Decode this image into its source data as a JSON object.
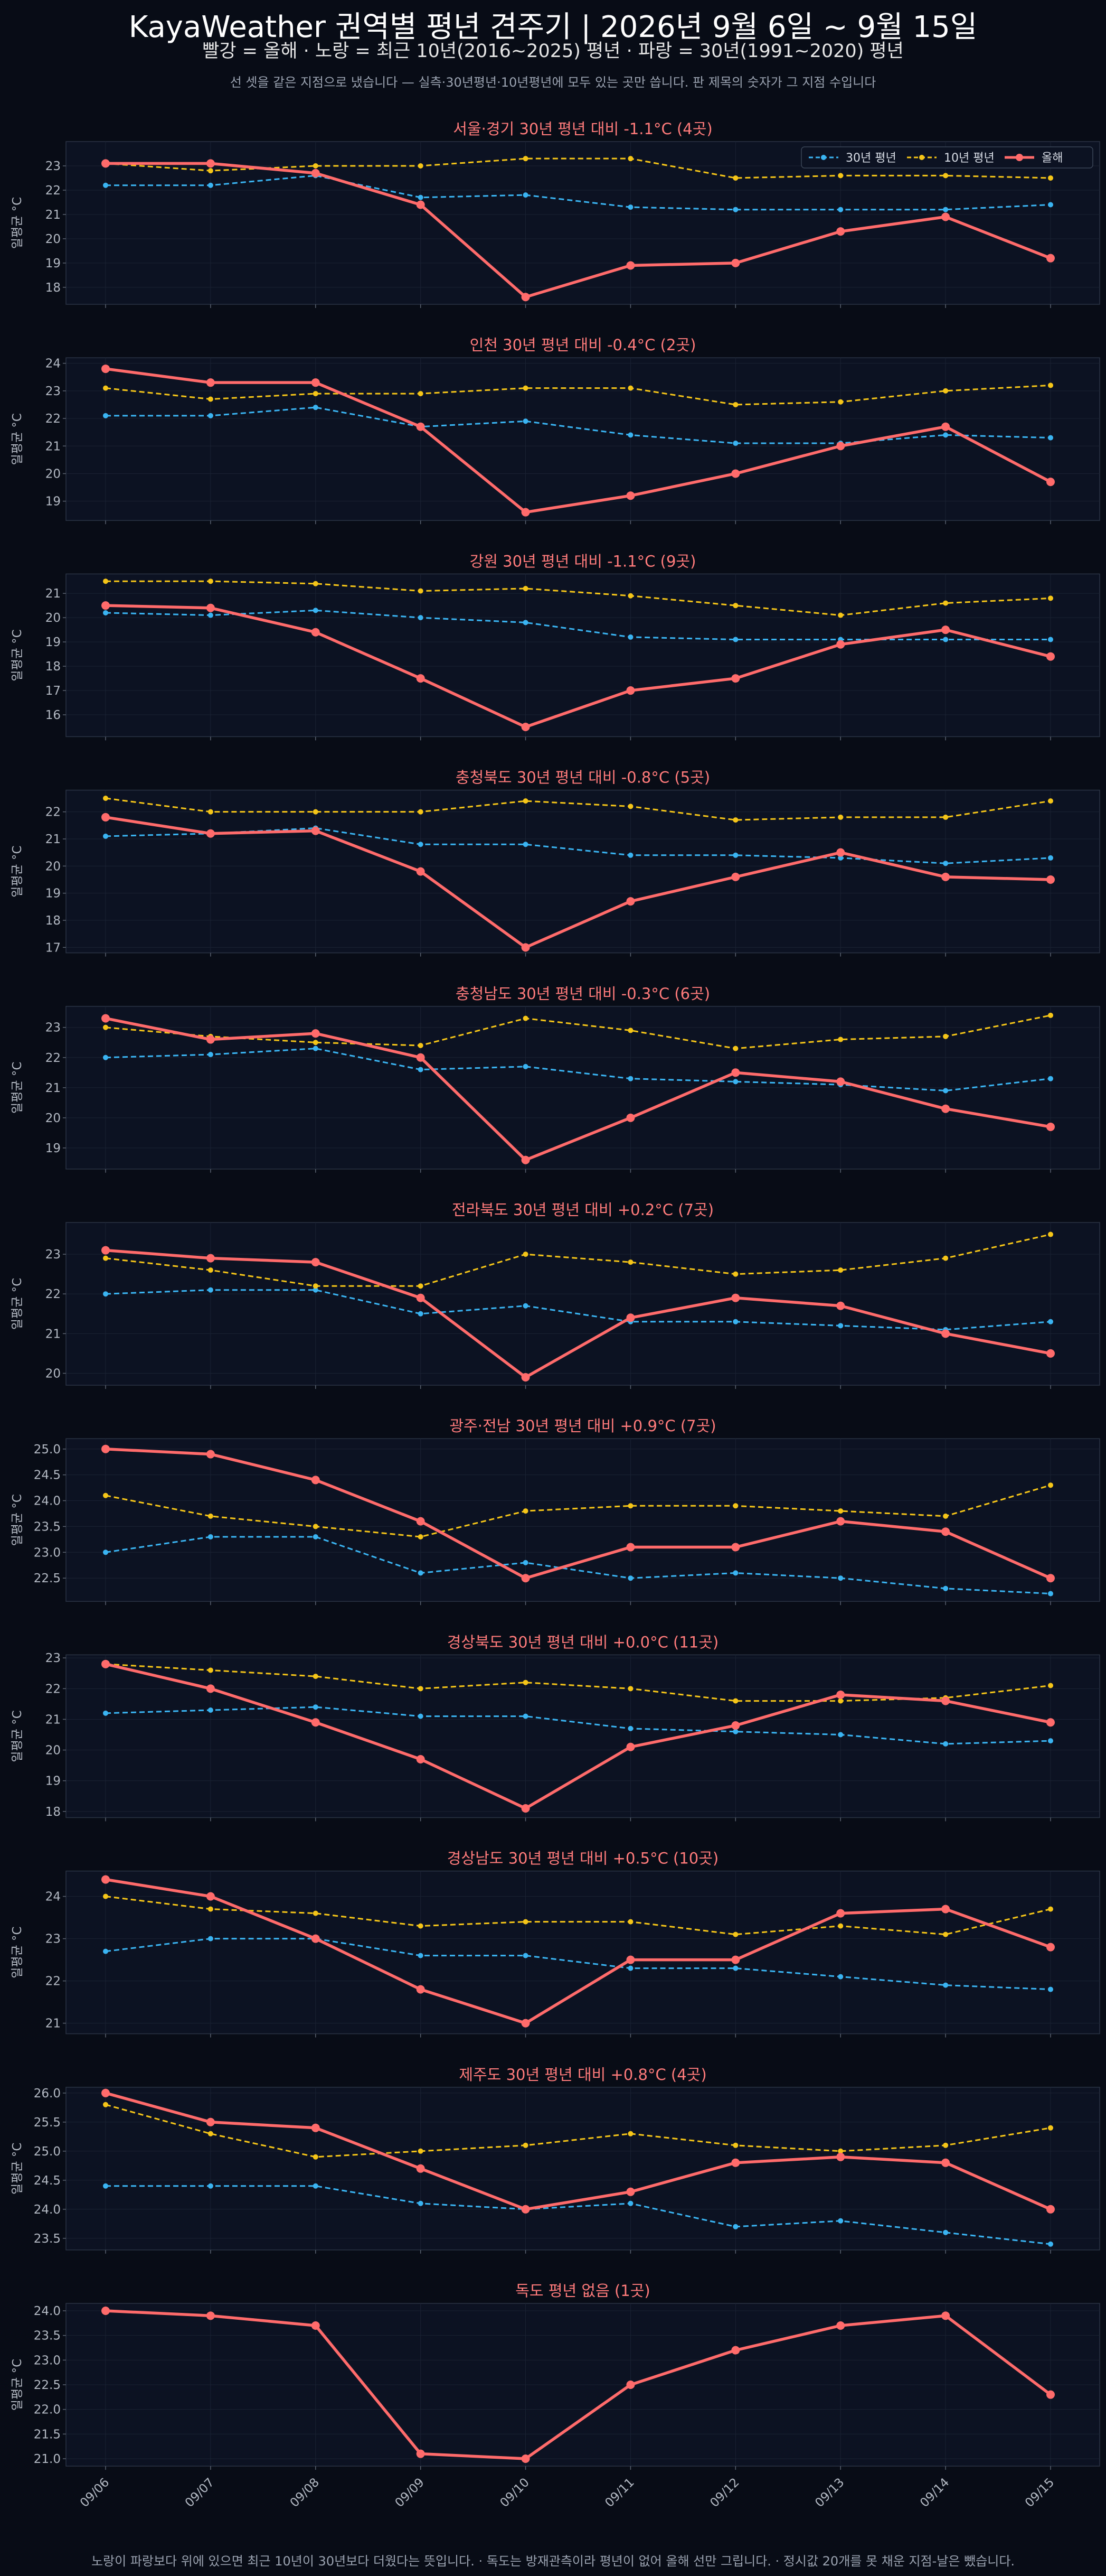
{
  "header": {
    "title": "KayaWeather 권역별 평년 견주기 | 2026년 9월 6일 ~ 9월 15일",
    "subtitle": "빨강 = 올해   ·   노랑 = 최근 10년(2016~2025) 평년   ·   파랑 = 30년(1991~2020) 평년",
    "note": "선 셋을 같은 지점으로 냈습니다 — 실측·30년평년·10년평년에 모두 있는 곳만 씁니다. 판 제목의 숫자가 그 지점 수입니다"
  },
  "footer": "노랑이 파랑보다 위에 있으면 최근 10년이 30년보다 더웠다는 뜻입니다.   ·   독도는 방재관측이라 평년이 없어 올해 선만 그립니다.   ·   정시값 20개를 못 채운 지점-날은 뺐습니다.",
  "colors": {
    "this_year": "#ff6b6b",
    "avg10": "#f5c518",
    "avg30": "#3ab4f2",
    "panel_bg": "#0c1222",
    "grid": "#1a2233"
  },
  "chart_data": {
    "type": "line",
    "categories": [
      "09/06",
      "09/07",
      "09/08",
      "09/09",
      "09/10",
      "09/11",
      "09/12",
      "09/13",
      "09/14",
      "09/15"
    ],
    "ylabel": "일평균 °C",
    "legend": {
      "placement": "top-right",
      "entries": [
        "30년 평년",
        "10년 평년",
        "올해"
      ]
    },
    "grid": true,
    "panels": [
      {
        "title": "서울·경기   30년 평년 대비 -1.1°C (4곳)",
        "ylim": [
          17.3,
          24.0
        ],
        "yticks": [
          18,
          19,
          20,
          21,
          22,
          23
        ],
        "this_year": [
          23.1,
          23.1,
          22.7,
          21.4,
          17.6,
          18.9,
          19.0,
          20.3,
          20.9,
          19.2
        ],
        "avg10": [
          23.1,
          22.8,
          23.0,
          23.0,
          23.3,
          23.3,
          22.5,
          22.6,
          22.6,
          22.5
        ],
        "avg30": [
          22.2,
          22.2,
          22.6,
          21.7,
          21.8,
          21.3,
          21.2,
          21.2,
          21.2,
          21.4
        ]
      },
      {
        "title": "인천   30년 평년 대비 -0.4°C (2곳)",
        "ylim": [
          18.3,
          24.2
        ],
        "yticks": [
          19,
          20,
          21,
          22,
          23,
          24
        ],
        "this_year": [
          23.8,
          23.3,
          23.3,
          21.7,
          18.6,
          19.2,
          20.0,
          21.0,
          21.7,
          19.7
        ],
        "avg10": [
          23.1,
          22.7,
          22.9,
          22.9,
          23.1,
          23.1,
          22.5,
          22.6,
          23.0,
          23.2
        ],
        "avg30": [
          22.1,
          22.1,
          22.4,
          21.7,
          21.9,
          21.4,
          21.1,
          21.1,
          21.4,
          21.3
        ]
      },
      {
        "title": "강원   30년 평년 대비 -1.1°C (9곳)",
        "ylim": [
          15.1,
          21.8
        ],
        "yticks": [
          16,
          17,
          18,
          19,
          20,
          21
        ],
        "this_year": [
          20.5,
          20.4,
          19.4,
          17.5,
          15.5,
          17.0,
          17.5,
          18.9,
          19.5,
          18.4
        ],
        "avg10": [
          21.5,
          21.5,
          21.4,
          21.1,
          21.2,
          20.9,
          20.5,
          20.1,
          20.6,
          20.8
        ],
        "avg30": [
          20.2,
          20.1,
          20.3,
          20.0,
          19.8,
          19.2,
          19.1,
          19.1,
          19.1,
          19.1
        ]
      },
      {
        "title": "충청북도   30년 평년 대비 -0.8°C (5곳)",
        "ylim": [
          16.8,
          22.8
        ],
        "yticks": [
          17,
          18,
          19,
          20,
          21,
          22
        ],
        "this_year": [
          21.8,
          21.2,
          21.3,
          19.8,
          17.0,
          18.7,
          19.6,
          20.5,
          19.6,
          19.5
        ],
        "avg10": [
          22.5,
          22.0,
          22.0,
          22.0,
          22.4,
          22.2,
          21.7,
          21.8,
          21.8,
          22.4
        ],
        "avg30": [
          21.1,
          21.2,
          21.4,
          20.8,
          20.8,
          20.4,
          20.4,
          20.3,
          20.1,
          20.3
        ]
      },
      {
        "title": "충청남도   30년 평년 대비 -0.3°C (6곳)",
        "ylim": [
          18.3,
          23.7
        ],
        "yticks": [
          19,
          20,
          21,
          22,
          23
        ],
        "this_year": [
          23.3,
          22.6,
          22.8,
          22.0,
          18.6,
          20.0,
          21.5,
          21.2,
          20.3,
          19.7
        ],
        "avg10": [
          23.0,
          22.7,
          22.5,
          22.4,
          23.3,
          22.9,
          22.3,
          22.6,
          22.7,
          23.4
        ],
        "avg30": [
          22.0,
          22.1,
          22.3,
          21.6,
          21.7,
          21.3,
          21.2,
          21.1,
          20.9,
          21.3
        ]
      },
      {
        "title": "전라북도   30년 평년 대비 +0.2°C (7곳)",
        "ylim": [
          19.7,
          23.8
        ],
        "yticks": [
          20,
          21,
          22,
          23
        ],
        "this_year": [
          23.1,
          22.9,
          22.8,
          21.9,
          19.9,
          21.4,
          21.9,
          21.7,
          21.0,
          20.5
        ],
        "avg10": [
          22.9,
          22.6,
          22.2,
          22.2,
          23.0,
          22.8,
          22.5,
          22.6,
          22.9,
          23.5
        ],
        "avg30": [
          22.0,
          22.1,
          22.1,
          21.5,
          21.7,
          21.3,
          21.3,
          21.2,
          21.1,
          21.3
        ]
      },
      {
        "title": "광주·전남   30년 평년 대비 +0.9°C (7곳)",
        "ylim": [
          22.05,
          25.2
        ],
        "yticks": [
          22.5,
          23.0,
          23.5,
          24.0,
          24.5,
          25.0
        ],
        "this_year": [
          25.0,
          24.9,
          24.4,
          23.6,
          22.5,
          23.1,
          23.1,
          23.6,
          23.4,
          22.5
        ],
        "avg10": [
          24.1,
          23.7,
          23.5,
          23.3,
          23.8,
          23.9,
          23.9,
          23.8,
          23.7,
          24.3
        ],
        "avg30": [
          23.0,
          23.3,
          23.3,
          22.6,
          22.8,
          22.5,
          22.6,
          22.5,
          22.3,
          22.2
        ]
      },
      {
        "title": "경상북도   30년 평년 대비 +0.0°C (11곳)",
        "ylim": [
          17.8,
          23.1
        ],
        "yticks": [
          18,
          19,
          20,
          21,
          22,
          23
        ],
        "this_year": [
          22.8,
          22.0,
          20.9,
          19.7,
          18.1,
          20.1,
          20.8,
          21.8,
          21.6,
          20.9
        ],
        "avg10": [
          22.8,
          22.6,
          22.4,
          22.0,
          22.2,
          22.0,
          21.6,
          21.6,
          21.7,
          22.1
        ],
        "avg30": [
          21.2,
          21.3,
          21.4,
          21.1,
          21.1,
          20.7,
          20.6,
          20.5,
          20.2,
          20.3
        ]
      },
      {
        "title": "경상남도   30년 평년 대비 +0.5°C (10곳)",
        "ylim": [
          20.75,
          24.6
        ],
        "yticks": [
          21,
          22,
          23,
          24
        ],
        "this_year": [
          24.4,
          24.0,
          23.0,
          21.8,
          21.0,
          22.5,
          22.5,
          23.6,
          23.7,
          22.8
        ],
        "avg10": [
          24.0,
          23.7,
          23.6,
          23.3,
          23.4,
          23.4,
          23.1,
          23.3,
          23.1,
          23.7
        ],
        "avg30": [
          22.7,
          23.0,
          23.0,
          22.6,
          22.6,
          22.3,
          22.3,
          22.1,
          21.9,
          21.8
        ]
      },
      {
        "title": "제주도   30년 평년 대비 +0.8°C (4곳)",
        "ylim": [
          23.3,
          26.1
        ],
        "yticks": [
          23.5,
          24.0,
          24.5,
          25.0,
          25.5,
          26.0
        ],
        "this_year": [
          26.0,
          25.5,
          25.4,
          24.7,
          24.0,
          24.3,
          24.8,
          24.9,
          24.8,
          24.0
        ],
        "avg10": [
          25.8,
          25.3,
          24.9,
          25.0,
          25.1,
          25.3,
          25.1,
          25.0,
          25.1,
          25.4
        ],
        "avg30": [
          24.4,
          24.4,
          24.4,
          24.1,
          24.0,
          24.1,
          23.7,
          23.8,
          23.6,
          23.4
        ]
      },
      {
        "title": "독도   평년 없음 (1곳)",
        "ylim": [
          20.85,
          24.15
        ],
        "yticks": [
          21.0,
          21.5,
          22.0,
          22.5,
          23.0,
          23.5,
          24.0
        ],
        "this_year": [
          24.0,
          23.9,
          23.7,
          21.1,
          21.0,
          22.5,
          23.2,
          23.7,
          23.9,
          22.3
        ],
        "avg10": null,
        "avg30": null
      }
    ]
  }
}
